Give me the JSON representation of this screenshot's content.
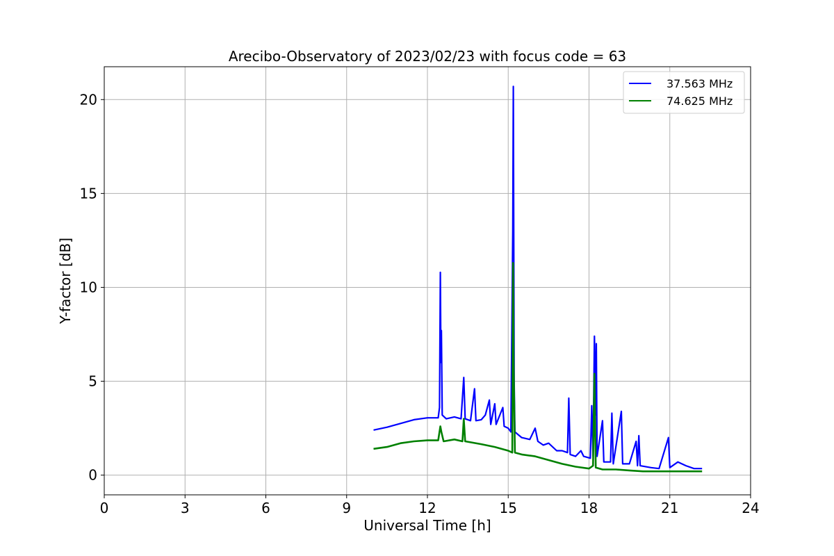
{
  "chart_data": {
    "type": "line",
    "title": "Arecibo-Observatory of 2023/02/23 with focus code = 63",
    "xlabel": "Universal Time [h]",
    "ylabel": "Y-factor [dB]",
    "xlim": [
      0,
      24
    ],
    "ylim": [
      -1.05,
      21.75
    ],
    "xticks": [
      0,
      3,
      6,
      9,
      12,
      15,
      18,
      21,
      24
    ],
    "yticks": [
      0,
      5,
      10,
      15,
      20
    ],
    "grid": true,
    "legend": "top-right",
    "series": [
      {
        "name": "37.563 MHz",
        "color": "#0000ff",
        "points": [
          [
            10.0,
            2.4
          ],
          [
            10.5,
            2.55
          ],
          [
            11.0,
            2.75
          ],
          [
            11.5,
            2.95
          ],
          [
            12.0,
            3.05
          ],
          [
            12.4,
            3.05
          ],
          [
            12.45,
            3.6
          ],
          [
            12.48,
            10.8
          ],
          [
            12.5,
            6.0
          ],
          [
            12.52,
            7.7
          ],
          [
            12.55,
            3.2
          ],
          [
            12.7,
            3.0
          ],
          [
            13.0,
            3.1
          ],
          [
            13.25,
            3.0
          ],
          [
            13.35,
            5.2
          ],
          [
            13.4,
            3.0
          ],
          [
            13.6,
            2.9
          ],
          [
            13.75,
            4.6
          ],
          [
            13.8,
            2.9
          ],
          [
            14.0,
            2.95
          ],
          [
            14.15,
            3.2
          ],
          [
            14.3,
            4.0
          ],
          [
            14.35,
            2.7
          ],
          [
            14.5,
            3.8
          ],
          [
            14.55,
            2.7
          ],
          [
            14.8,
            3.6
          ],
          [
            14.85,
            2.6
          ],
          [
            15.0,
            2.5
          ],
          [
            15.1,
            2.3
          ],
          [
            15.17,
            13.0
          ],
          [
            15.19,
            20.7
          ],
          [
            15.22,
            5.0
          ],
          [
            15.25,
            2.3
          ],
          [
            15.5,
            2.0
          ],
          [
            15.8,
            1.9
          ],
          [
            16.0,
            2.5
          ],
          [
            16.1,
            1.8
          ],
          [
            16.3,
            1.6
          ],
          [
            16.5,
            1.7
          ],
          [
            16.8,
            1.3
          ],
          [
            17.0,
            1.3
          ],
          [
            17.2,
            1.2
          ],
          [
            17.25,
            4.1
          ],
          [
            17.3,
            1.1
          ],
          [
            17.5,
            1.0
          ],
          [
            17.7,
            1.3
          ],
          [
            17.8,
            1.0
          ],
          [
            18.05,
            0.9
          ],
          [
            18.1,
            3.7
          ],
          [
            18.15,
            1.0
          ],
          [
            18.2,
            7.4
          ],
          [
            18.25,
            3.2
          ],
          [
            18.27,
            7.0
          ],
          [
            18.3,
            1.0
          ],
          [
            18.5,
            2.9
          ],
          [
            18.55,
            0.7
          ],
          [
            18.8,
            0.7
          ],
          [
            18.85,
            3.3
          ],
          [
            18.9,
            0.6
          ],
          [
            19.2,
            3.4
          ],
          [
            19.25,
            0.6
          ],
          [
            19.5,
            0.6
          ],
          [
            19.75,
            1.8
          ],
          [
            19.8,
            0.5
          ],
          [
            19.85,
            2.1
          ],
          [
            19.9,
            0.5
          ],
          [
            20.3,
            0.4
          ],
          [
            20.6,
            0.35
          ],
          [
            20.95,
            2.0
          ],
          [
            21.0,
            0.4
          ],
          [
            21.3,
            0.7
          ],
          [
            21.6,
            0.5
          ],
          [
            21.9,
            0.35
          ],
          [
            22.2,
            0.35
          ]
        ]
      },
      {
        "name": "74.625 MHz",
        "color": "#008000",
        "points": [
          [
            10.0,
            1.4
          ],
          [
            10.5,
            1.5
          ],
          [
            11.0,
            1.7
          ],
          [
            11.5,
            1.8
          ],
          [
            12.0,
            1.85
          ],
          [
            12.4,
            1.85
          ],
          [
            12.48,
            2.6
          ],
          [
            12.52,
            2.3
          ],
          [
            12.6,
            1.8
          ],
          [
            13.0,
            1.9
          ],
          [
            13.3,
            1.8
          ],
          [
            13.35,
            3.0
          ],
          [
            13.4,
            1.8
          ],
          [
            14.0,
            1.65
          ],
          [
            14.5,
            1.5
          ],
          [
            15.0,
            1.3
          ],
          [
            15.15,
            1.2
          ],
          [
            15.18,
            11.3
          ],
          [
            15.2,
            6.0
          ],
          [
            15.25,
            1.2
          ],
          [
            15.5,
            1.1
          ],
          [
            16.0,
            1.0
          ],
          [
            16.5,
            0.8
          ],
          [
            17.0,
            0.6
          ],
          [
            17.5,
            0.45
          ],
          [
            18.0,
            0.35
          ],
          [
            18.15,
            0.5
          ],
          [
            18.2,
            5.4
          ],
          [
            18.25,
            0.4
          ],
          [
            18.5,
            0.3
          ],
          [
            19.0,
            0.3
          ],
          [
            19.5,
            0.25
          ],
          [
            20.0,
            0.2
          ],
          [
            21.0,
            0.2
          ],
          [
            22.2,
            0.2
          ]
        ]
      }
    ]
  }
}
